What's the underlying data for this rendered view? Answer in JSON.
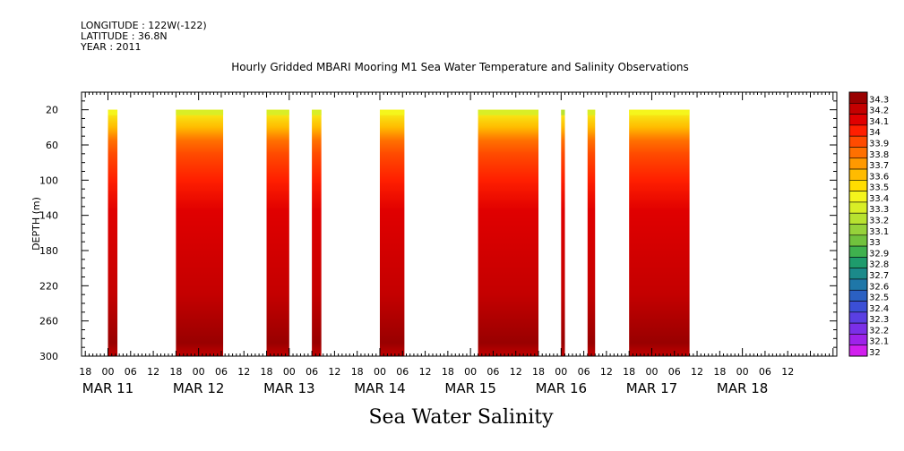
{
  "meta": {
    "longitude": "LONGITUDE : 122W(-122)",
    "latitude": "LATITUDE : 36.8N",
    "year": "YEAR : 2011"
  },
  "chart_data": {
    "type": "heatmap",
    "title": "Hourly Gridded MBARI Mooring M1 Sea Water Temperature and Salinity Observations",
    "variable_label": "Sea Water Salinity",
    "ylabel": "DEPTH (m)",
    "y_reversed": true,
    "ylim": [
      300,
      0
    ],
    "y_ticks": [
      20,
      60,
      100,
      140,
      180,
      220,
      260,
      300
    ],
    "x_hour_ticks": [
      "18",
      "00",
      "06",
      "12",
      "18",
      "00",
      "06",
      "12",
      "18",
      "00",
      "06",
      "12",
      "18",
      "00",
      "06",
      "12",
      "18",
      "00",
      "06",
      "12",
      "18",
      "00",
      "06",
      "12",
      "18",
      "00",
      "06",
      "12",
      "18",
      "00",
      "06",
      "12"
    ],
    "x_day_labels": [
      "MAR 11",
      "MAR 12",
      "MAR 13",
      "MAR 14",
      "MAR 15",
      "MAR 16",
      "MAR 17",
      "MAR 18"
    ],
    "x_range_hours_from_mar11_00": [
      -7,
      193
    ],
    "colorbar": {
      "levels": [
        34.3,
        34.2,
        34.1,
        34,
        33.9,
        33.8,
        33.7,
        33.6,
        33.5,
        33.4,
        33.3,
        33.2,
        33.1,
        33,
        32.9,
        32.8,
        32.7,
        32.6,
        32.5,
        32.4,
        32.3,
        32.2,
        32.1,
        32
      ],
      "colors": [
        "#990000",
        "#c40000",
        "#e00000",
        "#ff1f00",
        "#ff4b00",
        "#ff7000",
        "#ff9900",
        "#ffbb00",
        "#ffdd00",
        "#f5f51c",
        "#d9ee26",
        "#b8e230",
        "#96d23a",
        "#71c23d",
        "#3fb14e",
        "#1e9b6c",
        "#1b8a8a",
        "#1f77a8",
        "#2b60c2",
        "#3b4fd6",
        "#5a3fe3",
        "#7b2fe8",
        "#9e22ea",
        "#d11fee"
      ]
    },
    "data_blocks": [
      {
        "start": "MAR 11 00:00",
        "end": "MAR 11 02:30",
        "surface": 33.4
      },
      {
        "start": "MAR 11 18:00",
        "end": "MAR 12 06:30",
        "surface": 33.3
      },
      {
        "start": "MAR 12 18:00",
        "end": "MAR 13 00:00",
        "surface": 33.3
      },
      {
        "start": "MAR 13 06:00",
        "end": "MAR 13 08:30",
        "surface": 33.3
      },
      {
        "start": "MAR 13 24:00",
        "end": "MAR 14 06:30",
        "surface": 33.4
      },
      {
        "start": "MAR 15 02:00",
        "end": "MAR 15 18:00",
        "surface": 33.3
      },
      {
        "start": "MAR 16 00:00",
        "end": "MAR 16 01:00",
        "surface": 33.2
      },
      {
        "start": "MAR 16 07:00",
        "end": "MAR 16 09:00",
        "surface": 33.3
      },
      {
        "start": "MAR 16 18:00",
        "end": "MAR 17 10:00",
        "surface": 33.4
      }
    ],
    "depth_profile": [
      {
        "depth": 20,
        "value": 33.4
      },
      {
        "depth": 40,
        "value": 33.6
      },
      {
        "depth": 55,
        "value": 33.8
      },
      {
        "depth": 70,
        "value": 33.9
      },
      {
        "depth": 100,
        "value": 34.0
      },
      {
        "depth": 135,
        "value": 34.1
      },
      {
        "depth": 230,
        "value": 34.2
      },
      {
        "depth": 285,
        "value": 34.3
      },
      {
        "depth": 300,
        "value": 34.2
      }
    ]
  }
}
